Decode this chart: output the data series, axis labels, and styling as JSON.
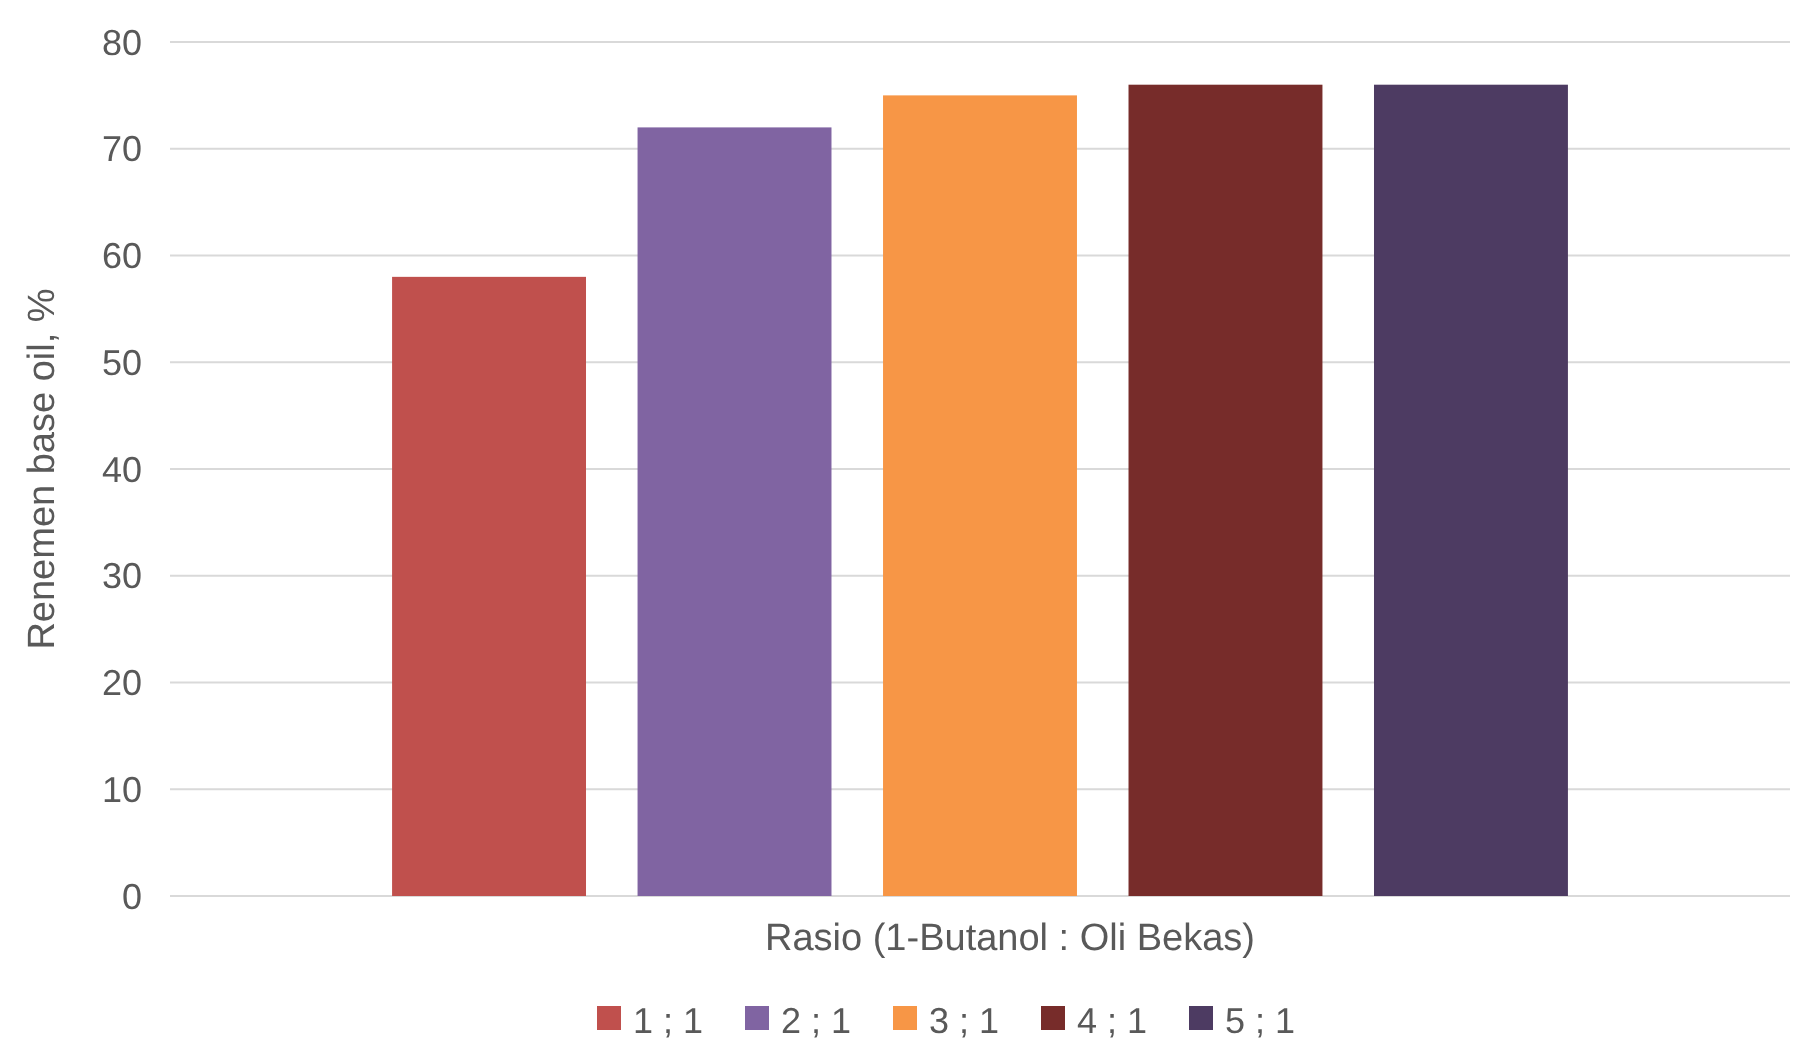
{
  "chart_data": {
    "type": "bar",
    "xlabel": "Rasio (1-Butanol : Oli Bekas)",
    "ylabel": "Renemen base oil, %",
    "categories": [
      null
    ],
    "series": [
      {
        "name": "1 ; 1",
        "color": "#c0504d",
        "values": [
          58
        ]
      },
      {
        "name": "2 ; 1",
        "color": "#8064a2",
        "values": [
          72
        ]
      },
      {
        "name": "3 ; 1",
        "color": "#f79646",
        "values": [
          75
        ]
      },
      {
        "name": "4 ; 1",
        "color": "#772c2a",
        "values": [
          76
        ]
      },
      {
        "name": "5 ; 1",
        "color": "#4d3b62",
        "values": [
          76
        ]
      }
    ],
    "ylim": [
      0,
      80
    ],
    "yticks": [
      0,
      10,
      20,
      30,
      40,
      50,
      60,
      70,
      80
    ],
    "grid": "y",
    "legend": "bottom"
  }
}
